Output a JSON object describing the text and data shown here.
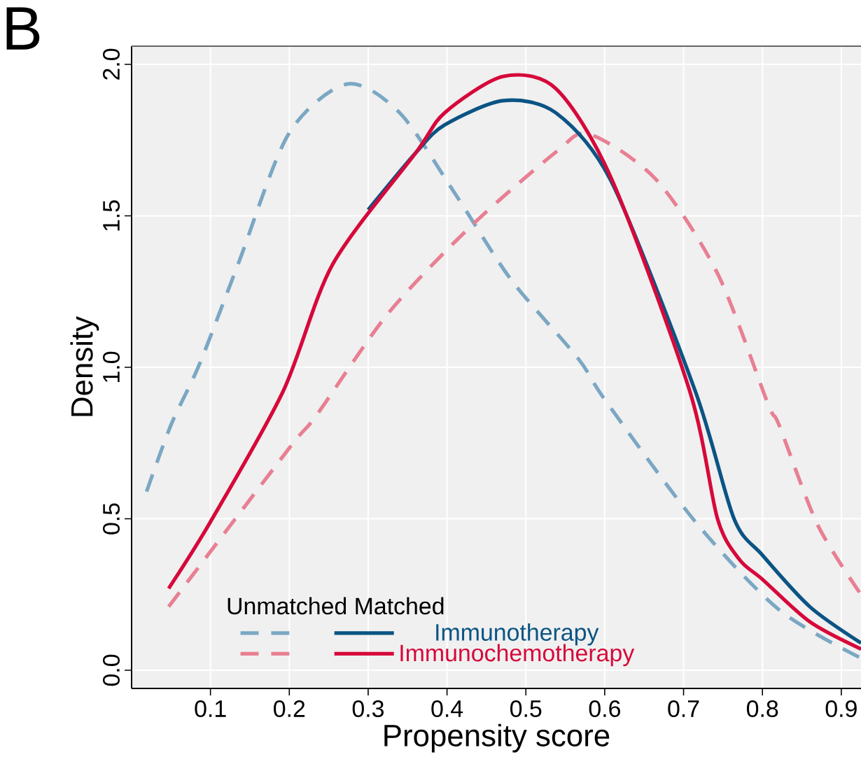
{
  "chart_data": {
    "type": "line",
    "xlabel": "Propensity score",
    "ylabel": "Density",
    "legend_title": "Unmatched Matched",
    "annotations": [
      "B"
    ],
    "xlim": [
      0,
      0.925
    ],
    "ylim": [
      -0.06,
      2.06
    ],
    "xticks": [
      0.1,
      0.2,
      0.3,
      0.4,
      0.5,
      0.6,
      0.7,
      0.8,
      0.9
    ],
    "yticks": [
      {
        "value": 0,
        "label": "0.0"
      },
      0.5,
      {
        "value": 1,
        "label": "1.0"
      },
      1.5,
      {
        "value": 2,
        "label": "2.0"
      }
    ],
    "grid": true,
    "legend": "bottom",
    "series": [
      {
        "color": "#7ba7c3",
        "line_style": "dashed",
        "x": [
          0.019,
          0.05,
          0.086,
          0.135,
          0.199,
          0.273,
          0.34,
          0.411,
          0.481,
          0.566,
          0.601,
          0.715,
          0.821,
          0.925
        ],
        "values": [
          0.59,
          0.81,
          1.01,
          1.34,
          1.77,
          1.935,
          1.84,
          1.57,
          1.29,
          1.03,
          0.89,
          0.49,
          0.2,
          0.04
        ]
      },
      {
        "color": "#e87f92",
        "line_style": "dashed",
        "x": [
          0.047,
          0.199,
          0.234,
          0.326,
          0.432,
          0.538,
          0.58,
          0.665,
          0.743,
          0.807,
          0.821,
          0.87,
          0.925
        ],
        "values": [
          0.21,
          0.73,
          0.84,
          1.18,
          1.47,
          1.71,
          1.77,
          1.62,
          1.31,
          0.88,
          0.81,
          0.48,
          0.25
        ]
      },
      {
        "name": "Immunotherapy",
        "color": "#0b5484",
        "line_style": "solid",
        "x": [
          0.3,
          0.361,
          0.397,
          0.471,
          0.538,
          0.609,
          0.715,
          0.764,
          0.8,
          0.86,
          0.925
        ],
        "values": [
          1.52,
          1.71,
          1.8,
          1.88,
          1.84,
          1.61,
          0.92,
          0.5,
          0.38,
          0.21,
          0.09
        ]
      },
      {
        "name": "Immunochemotherapy",
        "color": "#d6093a",
        "line_style": "solid",
        "x": [
          0.047,
          0.1,
          0.192,
          0.255,
          0.361,
          0.397,
          0.471,
          0.538,
          0.609,
          0.708,
          0.743,
          0.771,
          0.8,
          0.86,
          0.925
        ],
        "values": [
          0.27,
          0.49,
          0.92,
          1.34,
          1.71,
          1.84,
          1.96,
          1.92,
          1.62,
          0.92,
          0.5,
          0.365,
          0.3,
          0.16,
          0.07
        ]
      }
    ]
  }
}
